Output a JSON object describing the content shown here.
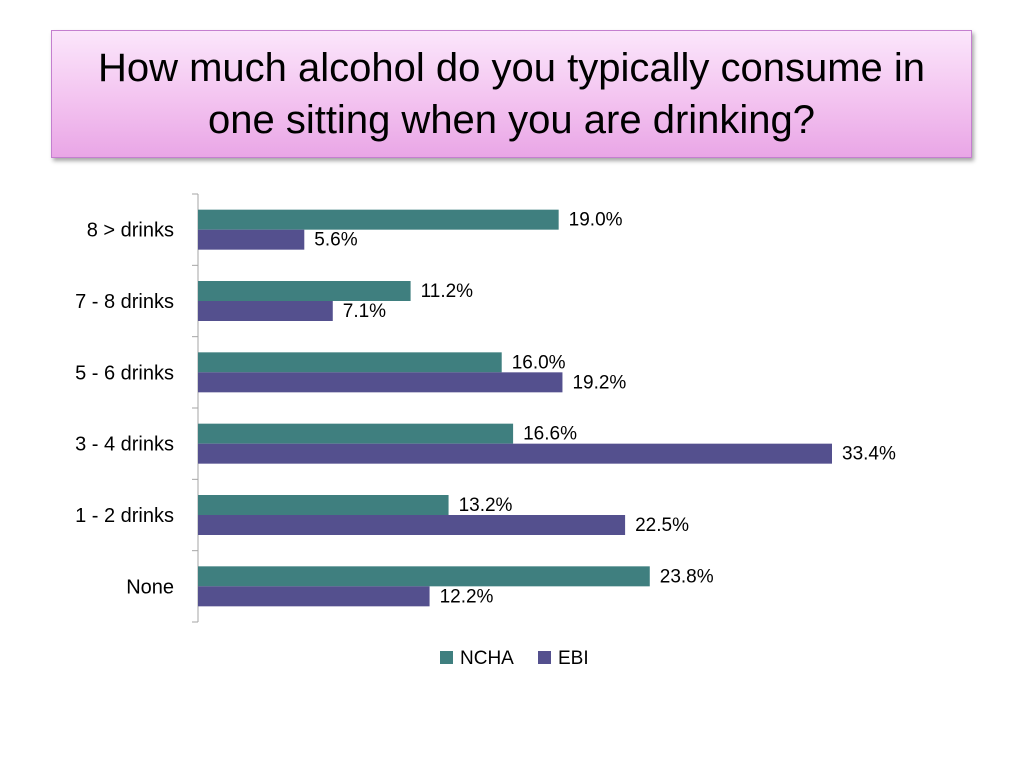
{
  "title": "How much alcohol do you typically consume in one sitting when you are drinking?",
  "chart_data": {
    "type": "bar",
    "orientation": "horizontal",
    "categories": [
      "8 > drinks",
      "7 - 8 drinks",
      "5 - 6 drinks",
      "3 - 4 drinks",
      "1 - 2 drinks",
      "None"
    ],
    "series": [
      {
        "name": "NCHA",
        "color": "#3f7f7f",
        "values": [
          19.0,
          11.2,
          16.0,
          16.6,
          13.2,
          23.8
        ],
        "labels": [
          "19.0%",
          "11.2%",
          "16.0%",
          "16.6%",
          "13.2%",
          "23.8%"
        ]
      },
      {
        "name": "EBI",
        "color": "#54508e",
        "values": [
          5.6,
          7.1,
          19.2,
          33.4,
          22.5,
          12.2
        ],
        "labels": [
          "5.6%",
          "7.1%",
          "19.2%",
          "33.4%",
          "22.5%",
          "12.2%"
        ]
      }
    ],
    "xlim": [
      0,
      35
    ],
    "grid": false,
    "legend_position": "bottom"
  }
}
